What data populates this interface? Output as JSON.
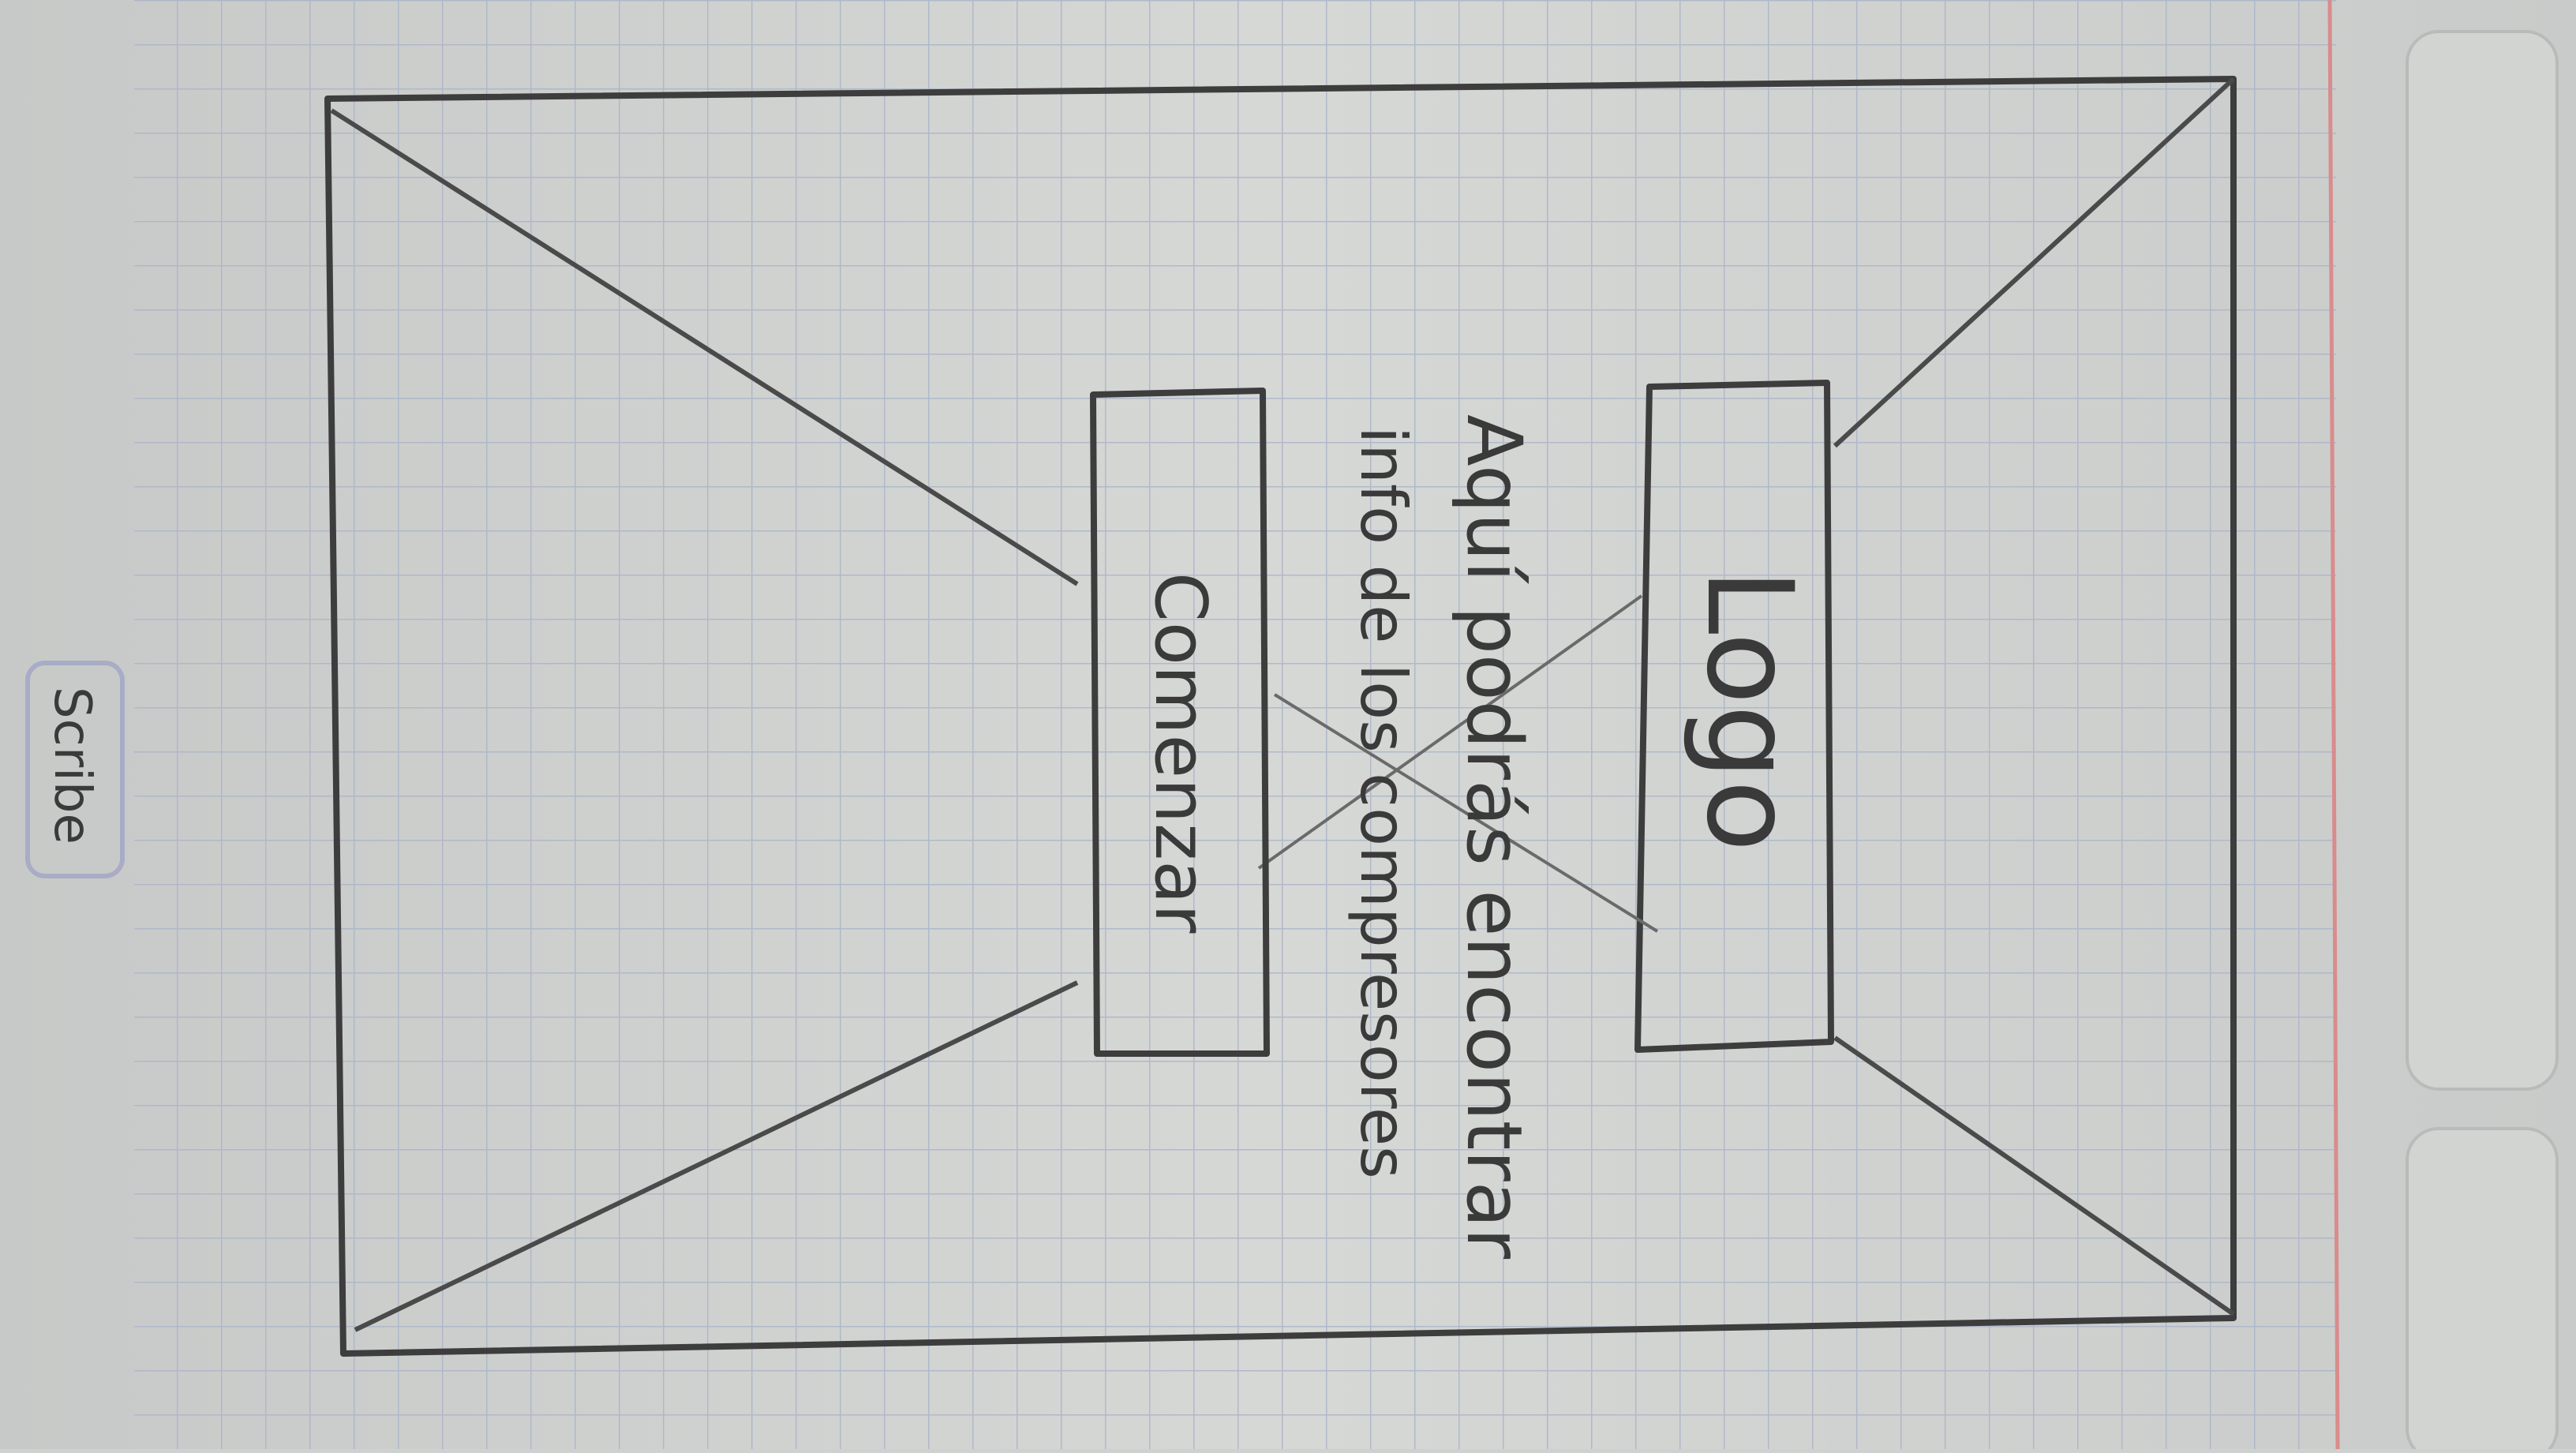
{
  "sketch": {
    "logo_text": "Logo",
    "description_line_1": "Aquí podrás encontrar",
    "description_line_2": "info de los compresores",
    "start_button_label": "Comenzar",
    "notebook_brand": "Scribe"
  },
  "colors": {
    "paper": "#d3d5d3",
    "grid": "#a9b3c8",
    "pencil": "#3c3c3c",
    "margin_line": "#d88a8a"
  }
}
